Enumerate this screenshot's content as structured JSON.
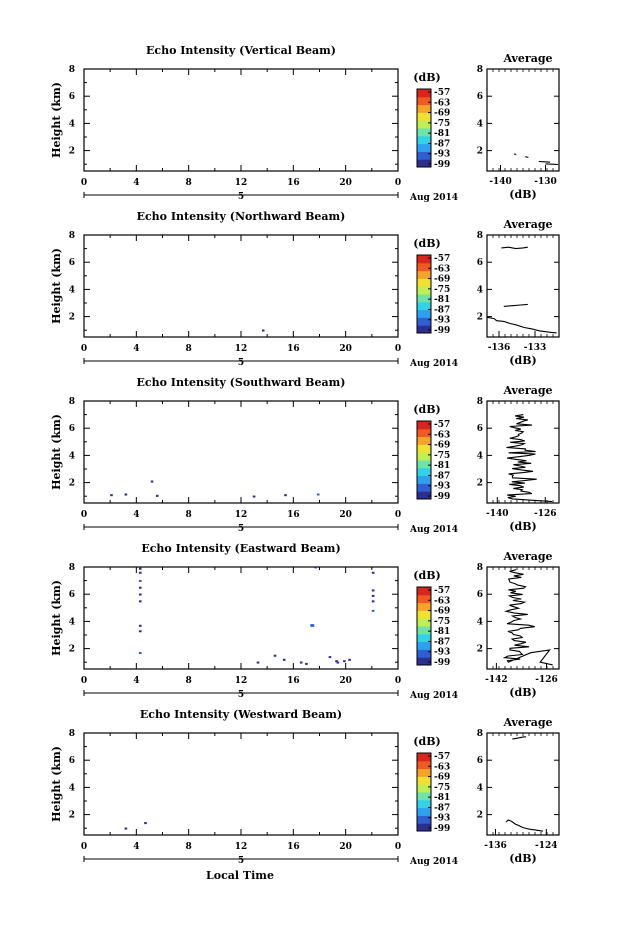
{
  "chart_data": {
    "type": "heatmap",
    "x_axis": {
      "label": "Local Time",
      "ticks": [
        "0",
        "4",
        "8",
        "12",
        "16",
        "20",
        "0"
      ],
      "range": [
        0,
        24
      ],
      "date_marker": "5",
      "date_suffix": "Aug 2014"
    },
    "y_axis": {
      "label": "Height (km)",
      "ticks": [
        "2",
        "4",
        "6",
        "8"
      ],
      "range": [
        0.5,
        8
      ]
    },
    "colorbar": {
      "label": "(dB)",
      "ticks": [
        "-57",
        "-63",
        "-69",
        "-75",
        "-81",
        "-87",
        "-93",
        "-99"
      ],
      "colors": [
        "#2b2f8f",
        "#2f5fd0",
        "#2fa0ee",
        "#33d2e6",
        "#6fe3a8",
        "#bfef55",
        "#f2e133",
        "#f5a32a",
        "#ef5a22",
        "#d7261f"
      ]
    },
    "panels": [
      {
        "title": "Echo Intensity (Vertical Beam)",
        "pixels": [],
        "average": {
          "title": "Average",
          "xlabel": "(dB)",
          "xticks": [
            "-140",
            "-130"
          ],
          "xrange": [
            -143,
            -127
          ],
          "yrange": [
            0.5,
            8
          ],
          "segments": [
            [
              [
                -137.0,
                1.75
              ],
              [
                -136.5,
                1.72
              ]
            ],
            [
              [
                -134.5,
                1.55
              ],
              [
                -133.8,
                1.5
              ]
            ],
            [
              [
                -131.5,
                1.2
              ],
              [
                -130.2,
                1.18
              ],
              [
                -129.0,
                1.15
              ]
            ],
            [
              [
                -130.0,
                1.02
              ],
              [
                -128.5,
                1.0
              ],
              [
                -127.2,
                0.98
              ]
            ]
          ]
        }
      },
      {
        "title": "Echo Intensity (Northward Beam)",
        "pixels": [
          {
            "t": 13.6,
            "h": 0.9,
            "dt": 0.2,
            "dh": 0.15,
            "c": 0
          }
        ],
        "average": {
          "title": "Average",
          "xlabel": "(dB)",
          "xticks": [
            "-136",
            "-133"
          ],
          "xrange": [
            -137,
            -131
          ],
          "yrange": [
            0.5,
            8
          ],
          "segments": [
            [
              [
                -135.8,
                7.05
              ],
              [
                -135.2,
                7.1
              ],
              [
                -134.6,
                7.0
              ],
              [
                -134.0,
                7.05
              ],
              [
                -133.6,
                7.1
              ]
            ],
            [
              [
                -135.6,
                2.75
              ],
              [
                -134.9,
                2.8
              ],
              [
                -134.2,
                2.85
              ],
              [
                -133.6,
                2.9
              ]
            ],
            [
              [
                -137.0,
                1.95
              ],
              [
                -136.4,
                1.85
              ],
              [
                -136.2,
                1.7
              ],
              [
                -135.6,
                1.65
              ],
              [
                -135.1,
                1.5
              ],
              [
                -134.6,
                1.4
              ],
              [
                -133.9,
                1.2
              ],
              [
                -133.3,
                1.1
              ],
              [
                -132.6,
                0.95
              ],
              [
                -131.8,
                0.85
              ],
              [
                -131.2,
                0.8
              ]
            ]
          ]
        }
      },
      {
        "title": "Echo Intensity (Southward Beam)",
        "pixels": [
          {
            "t": 2.0,
            "h": 1.0,
            "dt": 0.2,
            "dh": 0.15,
            "c": 0
          },
          {
            "t": 3.1,
            "h": 1.05,
            "dt": 0.2,
            "dh": 0.15,
            "c": 0
          },
          {
            "t": 5.1,
            "h": 2.0,
            "dt": 0.2,
            "dh": 0.15,
            "c": 0
          },
          {
            "t": 5.5,
            "h": 0.95,
            "dt": 0.2,
            "dh": 0.15,
            "c": 0
          },
          {
            "t": 15.3,
            "h": 1.0,
            "dt": 0.2,
            "dh": 0.15,
            "c": 0
          },
          {
            "t": 17.8,
            "h": 1.05,
            "dt": 0.2,
            "dh": 0.15,
            "c": 1
          },
          {
            "t": 12.9,
            "h": 0.9,
            "dt": 0.2,
            "dh": 0.15,
            "c": 0
          }
        ],
        "average": {
          "title": "Average",
          "xlabel": "(dB)",
          "xticks": [
            "-140",
            "-126"
          ],
          "xrange": [
            -143,
            -122
          ],
          "yrange": [
            0.5,
            8
          ],
          "zigzag": {
            "hmin": 0.8,
            "hmax": 7.0,
            "xcenter": -134,
            "amp": 3.5,
            "n": 64,
            "seed": 3,
            "tail": [
              [
                -124,
                0.6
              ]
            ]
          }
        }
      },
      {
        "title": "Echo Intensity (Eastward Beam)",
        "pixels": [
          {
            "t": 4.2,
            "h": 7.8,
            "dt": 0.2,
            "dh": 0.15,
            "c": 0
          },
          {
            "t": 4.2,
            "h": 7.5,
            "dt": 0.2,
            "dh": 0.15,
            "c": 0
          },
          {
            "t": 4.2,
            "h": 6.9,
            "dt": 0.2,
            "dh": 0.15,
            "c": 1
          },
          {
            "t": 4.2,
            "h": 6.4,
            "dt": 0.2,
            "dh": 0.15,
            "c": 0
          },
          {
            "t": 4.2,
            "h": 5.9,
            "dt": 0.2,
            "dh": 0.15,
            "c": 0
          },
          {
            "t": 4.2,
            "h": 5.4,
            "dt": 0.2,
            "dh": 0.15,
            "c": 0
          },
          {
            "t": 4.2,
            "h": 3.6,
            "dt": 0.2,
            "dh": 0.15,
            "c": 0
          },
          {
            "t": 4.2,
            "h": 3.2,
            "dt": 0.2,
            "dh": 0.15,
            "c": 0
          },
          {
            "t": 4.2,
            "h": 1.6,
            "dt": 0.2,
            "dh": 0.15,
            "c": 1
          },
          {
            "t": 13.2,
            "h": 0.9,
            "dt": 0.2,
            "dh": 0.15,
            "c": 0
          },
          {
            "t": 14.5,
            "h": 1.4,
            "dt": 0.2,
            "dh": 0.15,
            "c": 0
          },
          {
            "t": 15.2,
            "h": 1.1,
            "dt": 0.2,
            "dh": 0.15,
            "c": 0
          },
          {
            "t": 16.5,
            "h": 0.9,
            "dt": 0.2,
            "dh": 0.15,
            "c": 0
          },
          {
            "t": 16.9,
            "h": 0.8,
            "dt": 0.2,
            "dh": 0.15,
            "c": 0
          },
          {
            "t": 17.3,
            "h": 3.6,
            "dt": 0.3,
            "dh": 0.2,
            "c": 1
          },
          {
            "t": 17.6,
            "h": 7.9,
            "dt": 0.2,
            "dh": 0.15,
            "c": 0
          },
          {
            "t": 18.7,
            "h": 1.3,
            "dt": 0.2,
            "dh": 0.15,
            "c": 0
          },
          {
            "t": 19.2,
            "h": 1.0,
            "dt": 0.2,
            "dh": 0.15,
            "c": 0
          },
          {
            "t": 19.3,
            "h": 0.9,
            "dt": 0.2,
            "dh": 0.15,
            "c": 0
          },
          {
            "t": 19.8,
            "h": 1.0,
            "dt": 0.2,
            "dh": 0.15,
            "c": 0
          },
          {
            "t": 20.2,
            "h": 1.1,
            "dt": 0.2,
            "dh": 0.15,
            "c": 0
          },
          {
            "t": 22.0,
            "h": 7.5,
            "dt": 0.2,
            "dh": 0.15,
            "c": 0
          },
          {
            "t": 22.0,
            "h": 6.2,
            "dt": 0.2,
            "dh": 0.15,
            "c": 0
          },
          {
            "t": 22.0,
            "h": 5.8,
            "dt": 0.2,
            "dh": 0.15,
            "c": 0
          },
          {
            "t": 22.0,
            "h": 5.4,
            "dt": 0.2,
            "dh": 0.15,
            "c": 0
          },
          {
            "t": 22.0,
            "h": 4.7,
            "dt": 0.2,
            "dh": 0.15,
            "c": 1
          }
        ],
        "average": {
          "title": "Average",
          "xlabel": "(dB)",
          "xticks": [
            "-142",
            "-126"
          ],
          "xrange": [
            -145,
            -122
          ],
          "yrange": [
            0.5,
            8
          ],
          "zigzag": {
            "hmin": 1.0,
            "hmax": 7.8,
            "xcenter": -136,
            "amp": 3.5,
            "n": 60,
            "seed": 7,
            "tail": [
              [
                -131,
                1.7
              ],
              [
                -125,
                1.9
              ],
              [
                -128,
                1.0
              ],
              [
                -124,
                0.8
              ]
            ]
          }
        }
      },
      {
        "title": "Echo Intensity (Westward Beam)",
        "pixels": [
          {
            "t": 3.1,
            "h": 0.9,
            "dt": 0.2,
            "dh": 0.15,
            "c": 0
          },
          {
            "t": 4.6,
            "h": 1.3,
            "dt": 0.2,
            "dh": 0.15,
            "c": 0
          }
        ],
        "average": {
          "title": "Average",
          "xlabel": "(dB)",
          "xticks": [
            "-136",
            "-124"
          ],
          "xrange": [
            -138,
            -121
          ],
          "yrange": [
            0.5,
            8
          ],
          "segments": [
            [
              [
                -132.0,
                7.55
              ],
              [
                -131.2,
                7.6
              ],
              [
                -130.4,
                7.65
              ],
              [
                -129.6,
                7.7
              ],
              [
                -128.8,
                7.72
              ]
            ],
            [
              [
                -133.5,
                1.45
              ],
              [
                -133.0,
                1.6
              ],
              [
                -132.2,
                1.5
              ],
              [
                -131.3,
                1.3
              ],
              [
                -130.5,
                1.2
              ],
              [
                -129.6,
                1.05
              ],
              [
                -128.7,
                0.98
              ],
              [
                -127.8,
                0.92
              ],
              [
                -126.8,
                0.88
              ],
              [
                -125.7,
                0.82
              ],
              [
                -124.8,
                0.78
              ]
            ]
          ]
        }
      }
    ]
  }
}
